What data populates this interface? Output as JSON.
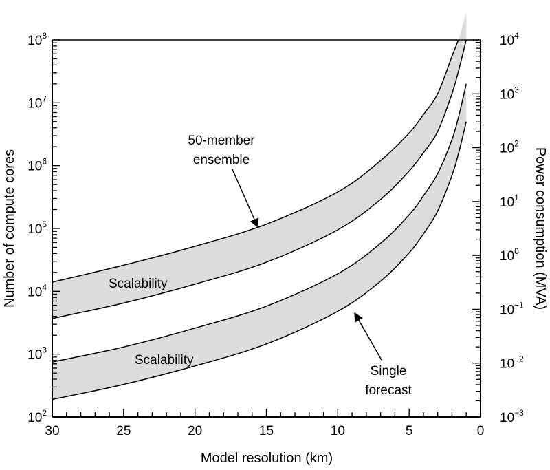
{
  "chart_data": {
    "type": "area",
    "xlabel": "Model resolution (km)",
    "ylabel_left": "Number of compute cores",
    "ylabel_right": "Power consumption (MVA)",
    "x_range": [
      30,
      0
    ],
    "x_ticks": [
      30,
      25,
      20,
      15,
      10,
      5,
      0
    ],
    "y_left_log_range": [
      100,
      100000000
    ],
    "y_right_log_range": [
      0.001,
      10000
    ],
    "y_left_ticks": [
      {
        "base": "10",
        "exp": "2",
        "value": 100
      },
      {
        "base": "10",
        "exp": "3",
        "value": 1000
      },
      {
        "base": "10",
        "exp": "4",
        "value": 10000
      },
      {
        "base": "10",
        "exp": "5",
        "value": 100000
      },
      {
        "base": "10",
        "exp": "6",
        "value": 1000000
      },
      {
        "base": "10",
        "exp": "7",
        "value": 10000000
      },
      {
        "base": "10",
        "exp": "8",
        "value": 100000000
      }
    ],
    "y_right_ticks": [
      {
        "base": "10",
        "exp": "−3",
        "value": 0.001
      },
      {
        "base": "10",
        "exp": "−2",
        "value": 0.01
      },
      {
        "base": "10",
        "exp": "−1",
        "value": 0.1
      },
      {
        "base": "10",
        "exp": "0",
        "value": 1
      },
      {
        "base": "10",
        "exp": "1",
        "value": 10
      },
      {
        "base": "10",
        "exp": "2",
        "value": 100
      },
      {
        "base": "10",
        "exp": "3",
        "value": 1000
      },
      {
        "base": "10",
        "exp": "4",
        "value": 10000
      }
    ],
    "band_color": "#dcdcdc",
    "series": [
      {
        "name": "50-member ensemble",
        "upper": [
          {
            "x": 30,
            "y": 14000
          },
          {
            "x": 25,
            "y": 26000
          },
          {
            "x": 20,
            "y": 52000
          },
          {
            "x": 15,
            "y": 117000
          },
          {
            "x": 10,
            "y": 380000
          },
          {
            "x": 7,
            "y": 1200000
          },
          {
            "x": 5,
            "y": 3300000
          },
          {
            "x": 4,
            "y": 6500000
          },
          {
            "x": 3,
            "y": 14000000
          },
          {
            "x": 2,
            "y": 55000000
          },
          {
            "x": 1.5,
            "y": 110000000
          },
          {
            "x": 1,
            "y": 280000000
          }
        ],
        "lower": [
          {
            "x": 30,
            "y": 3700
          },
          {
            "x": 25,
            "y": 6500
          },
          {
            "x": 20,
            "y": 13000
          },
          {
            "x": 15,
            "y": 29000
          },
          {
            "x": 10,
            "y": 95000
          },
          {
            "x": 7,
            "y": 290000
          },
          {
            "x": 5,
            "y": 820000
          },
          {
            "x": 4,
            "y": 1600000
          },
          {
            "x": 3,
            "y": 3500000
          },
          {
            "x": 2,
            "y": 14000000
          },
          {
            "x": 1.5,
            "y": 35000000
          },
          {
            "x": 1,
            "y": 100000000
          }
        ]
      },
      {
        "name": "Single forecast",
        "upper": [
          {
            "x": 30,
            "y": 750
          },
          {
            "x": 25,
            "y": 1300
          },
          {
            "x": 20,
            "y": 2600
          },
          {
            "x": 15,
            "y": 5800
          },
          {
            "x": 10,
            "y": 19000
          },
          {
            "x": 7,
            "y": 58000
          },
          {
            "x": 5,
            "y": 165000
          },
          {
            "x": 4,
            "y": 330000
          },
          {
            "x": 3,
            "y": 750000
          },
          {
            "x": 2,
            "y": 2600000
          },
          {
            "x": 1.5,
            "y": 6500000
          },
          {
            "x": 1,
            "y": 20000000
          }
        ],
        "lower": [
          {
            "x": 30,
            "y": 190
          },
          {
            "x": 25,
            "y": 330
          },
          {
            "x": 20,
            "y": 650
          },
          {
            "x": 15,
            "y": 1450
          },
          {
            "x": 10,
            "y": 4800
          },
          {
            "x": 7,
            "y": 14500
          },
          {
            "x": 5,
            "y": 41000
          },
          {
            "x": 4,
            "y": 82000
          },
          {
            "x": 3,
            "y": 190000
          },
          {
            "x": 2,
            "y": 700000
          },
          {
            "x": 1.5,
            "y": 1700000
          },
          {
            "x": 1,
            "y": 5000000
          }
        ]
      }
    ],
    "annotations": [
      {
        "id": "ensemble",
        "lines": [
          "50-member",
          "ensemble"
        ]
      },
      {
        "id": "single",
        "lines": [
          "Single",
          "forecast"
        ]
      },
      {
        "id": "scal1",
        "lines": [
          "Scalability"
        ]
      },
      {
        "id": "scal2",
        "lines": [
          "Scalability"
        ]
      }
    ]
  }
}
